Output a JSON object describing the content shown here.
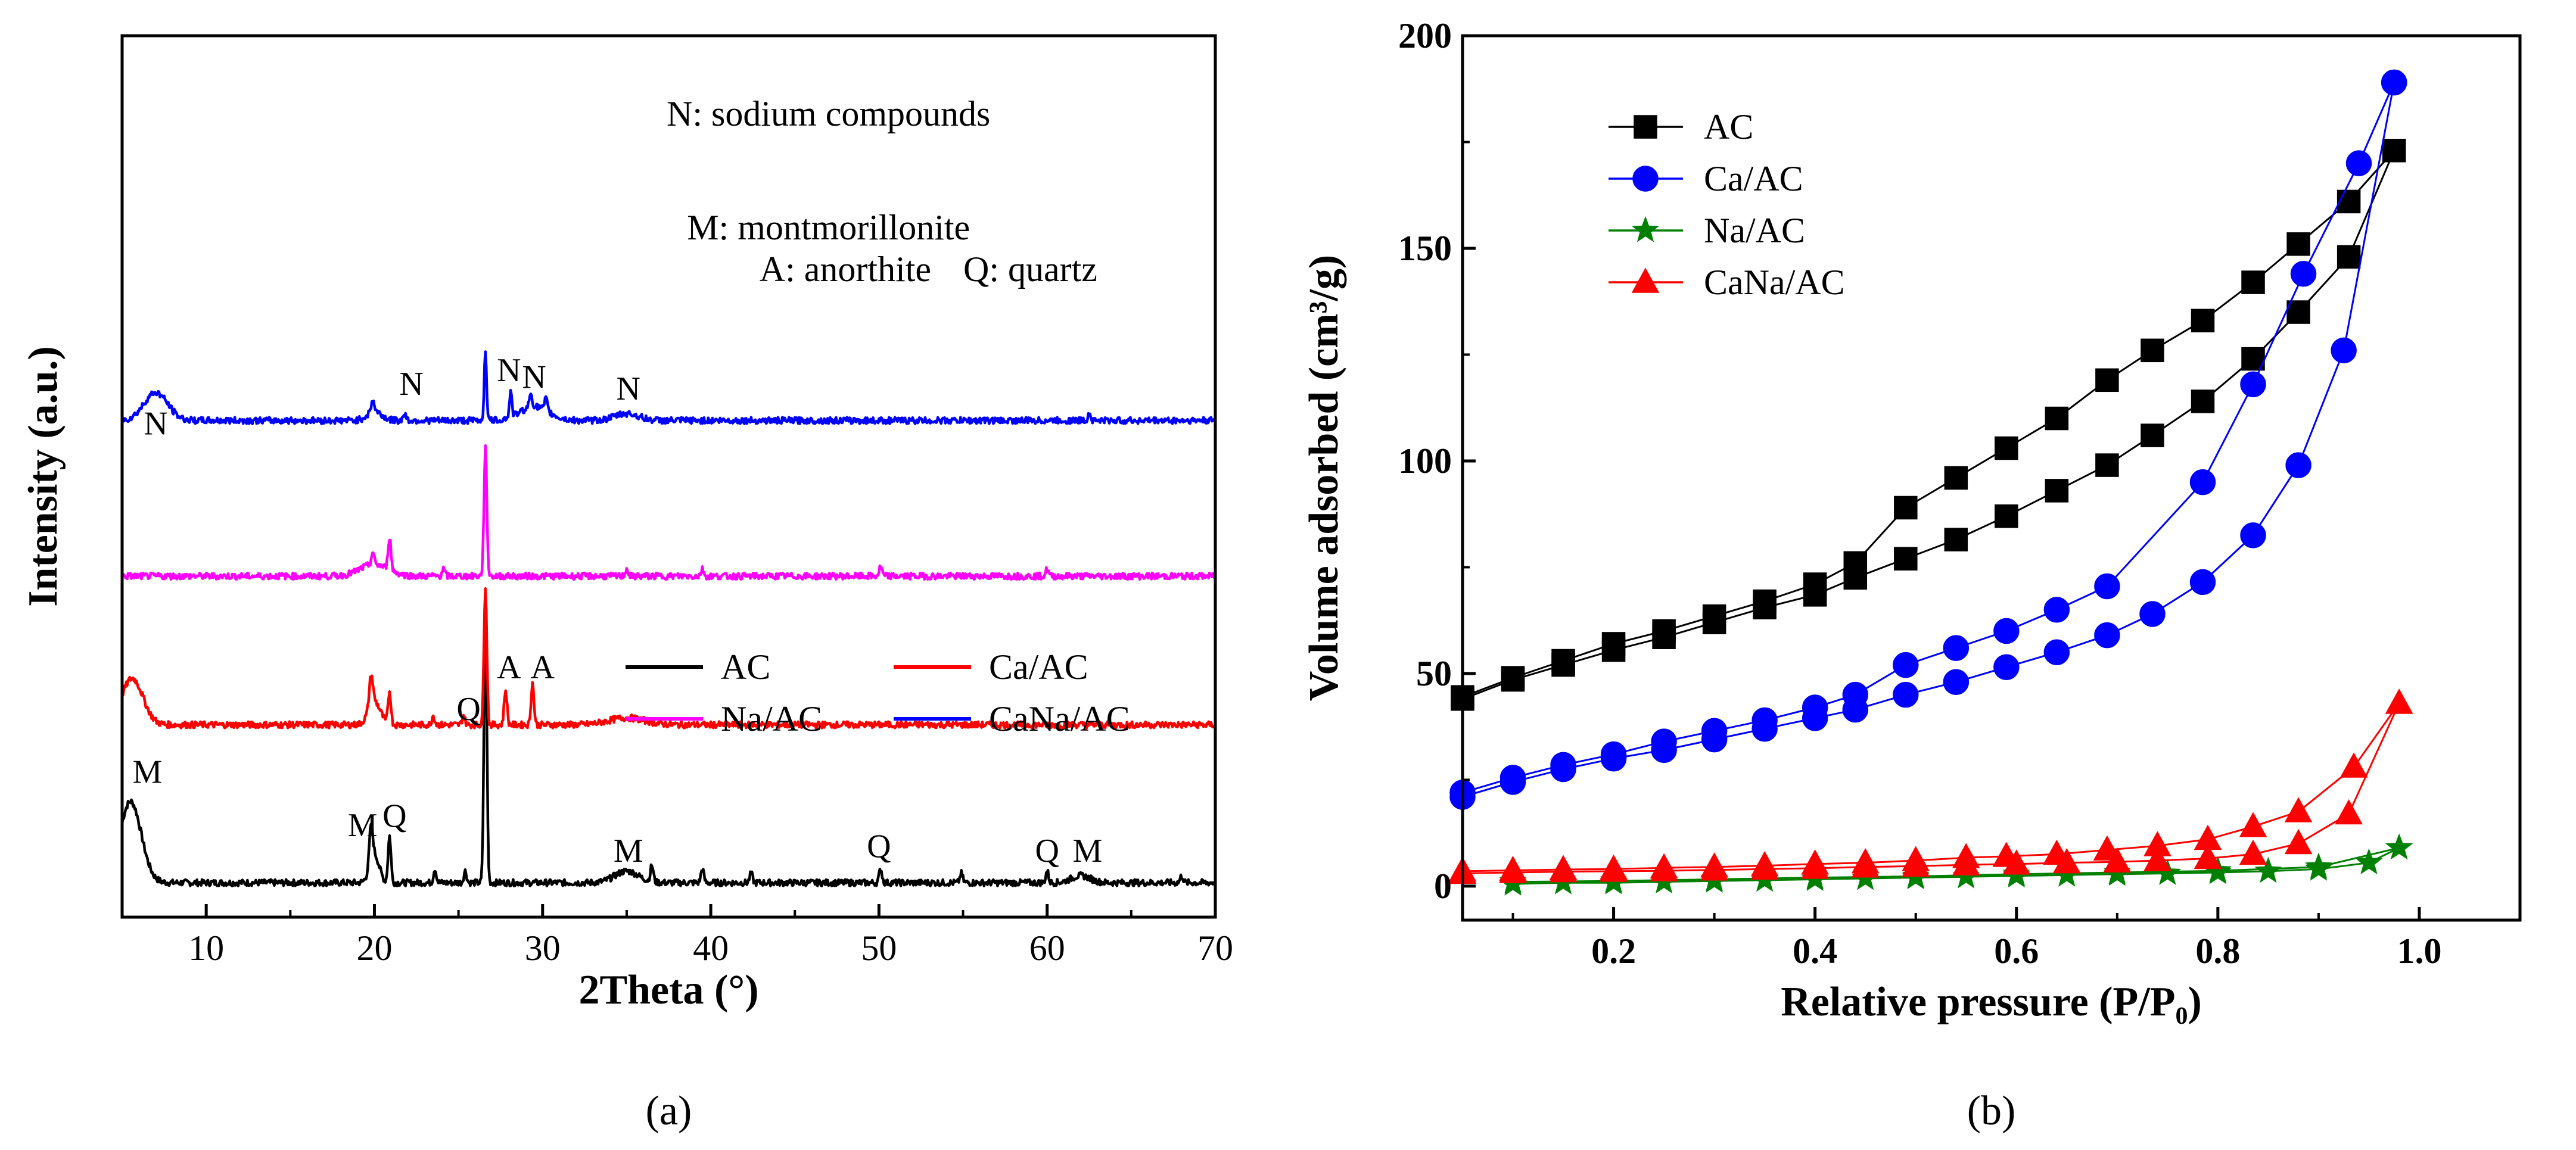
{
  "chart_data": [
    {
      "type": "line",
      "panel_label": "(a)",
      "xlabel": "2Theta (°)",
      "ylabel": "Intensity (a.u.)",
      "xlim": [
        5,
        70
      ],
      "x_ticks": [
        "10",
        "20",
        "30",
        "40",
        "50",
        "60",
        "70"
      ],
      "y_ticks": [],
      "legend": {
        "placement": "inside-lower-right",
        "entries": [
          {
            "label": "AC",
            "color": "#000000"
          },
          {
            "label": "Ca/AC",
            "color": "#ff0000"
          },
          {
            "label": "Na/AC",
            "color": "#ff00ff"
          },
          {
            "label": "CaNa/AC",
            "color": "#0000ff"
          }
        ]
      },
      "annotations_key": [
        {
          "text": "N: sodium compounds",
          "x": 47,
          "stack_y": 3.28
        },
        {
          "text": "M: montmorillonite",
          "x": 47,
          "stack_y": 2.79
        },
        {
          "text": "A: anorthite",
          "x": 48,
          "stack_y": 2.61
        },
        {
          "text": "Q: quartz",
          "x": 59,
          "stack_y": 2.61
        }
      ],
      "series": [
        {
          "name": "AC",
          "color": "#000000",
          "offset": 0,
          "baseline": 0.02,
          "broad": [
            [
              5.5,
              0.35,
              0.9
            ],
            [
              20,
              0.12,
              0.4
            ],
            [
              35,
              0.05,
              1.0
            ],
            [
              62,
              0.03,
              0.8
            ]
          ],
          "peaks": [
            [
              26.6,
              1.18,
              0.12
            ],
            [
              19.8,
              0.16,
              0.14
            ],
            [
              20.9,
              0.2,
              0.12
            ],
            [
              23.6,
              0.06,
              0.12
            ],
            [
              25.4,
              0.05,
              0.12
            ],
            [
              36.5,
              0.07,
              0.12
            ],
            [
              39.5,
              0.06,
              0.12
            ],
            [
              42.4,
              0.04,
              0.12
            ],
            [
              50.1,
              0.06,
              0.12
            ],
            [
              54.9,
              0.04,
              0.12
            ],
            [
              60.0,
              0.05,
              0.12
            ],
            [
              68.0,
              0.03,
              0.12
            ]
          ],
          "labels": [
            {
              "text": "M",
              "x": 6.5,
              "y": 0.45
            },
            {
              "text": "M",
              "x": 19.3,
              "y": 0.22
            },
            {
              "text": "Q",
              "x": 21.2,
              "y": 0.26
            },
            {
              "text": "Q",
              "x": 25.6,
              "y": 0.72
            },
            {
              "text": "M",
              "x": 35.1,
              "y": 0.11
            },
            {
              "text": "Q",
              "x": 50.0,
              "y": 0.13
            },
            {
              "text": "Q",
              "x": 60.0,
              "y": 0.11
            },
            {
              "text": "M",
              "x": 62.4,
              "y": 0.11
            }
          ]
        },
        {
          "name": "Ca/AC",
          "color": "#ff0000",
          "offset": 0.68,
          "baseline": 0.02,
          "broad": [
            [
              5.6,
              0.2,
              0.9
            ],
            [
              20,
              0.1,
              0.5
            ],
            [
              35,
              0.03,
              1.5
            ]
          ],
          "peaks": [
            [
              26.6,
              0.6,
              0.12
            ],
            [
              19.8,
              0.13,
              0.15
            ],
            [
              20.9,
              0.14,
              0.12
            ],
            [
              27.8,
              0.15,
              0.12
            ],
            [
              29.4,
              0.18,
              0.12
            ],
            [
              23.5,
              0.04,
              0.12
            ],
            [
              25.3,
              0.04,
              0.12
            ]
          ],
          "labels": [
            {
              "text": "A",
              "x": 28.0,
              "y": 0.22
            },
            {
              "text": "A",
              "x": 30.0,
              "y": 0.22
            }
          ]
        },
        {
          "name": "Na/AC",
          "color": "#ff00ff",
          "offset": 1.32,
          "baseline": 0.02,
          "broad": [
            [
              20,
              0.05,
              1.2
            ]
          ],
          "peaks": [
            [
              26.6,
              0.55,
              0.12
            ],
            [
              20.9,
              0.14,
              0.12
            ],
            [
              19.9,
              0.05,
              0.12
            ],
            [
              24.1,
              0.03,
              0.12
            ],
            [
              35.0,
              0.03,
              0.12
            ],
            [
              39.5,
              0.03,
              0.12
            ],
            [
              50.1,
              0.04,
              0.12
            ],
            [
              60.0,
              0.03,
              0.12
            ]
          ],
          "labels": []
        },
        {
          "name": "CaNa/AC",
          "color": "#0000ff",
          "offset": 1.99,
          "baseline": 0.02,
          "broad": [
            [
              7.0,
              0.12,
              1.0
            ],
            [
              20,
              0.04,
              0.6
            ],
            [
              29.5,
              0.06,
              1.2
            ],
            [
              35,
              0.03,
              1.0
            ]
          ],
          "peaks": [
            [
              26.6,
              0.3,
              0.1
            ],
            [
              19.9,
              0.05,
              0.12
            ],
            [
              28.1,
              0.11,
              0.1
            ],
            [
              29.3,
              0.06,
              0.12
            ],
            [
              30.2,
              0.05,
              0.12
            ],
            [
              21.8,
              0.03,
              0.12
            ],
            [
              62.5,
              0.03,
              0.12
            ]
          ],
          "labels": [
            {
              "text": "N",
              "x": 7.0,
              "y": -0.04
            },
            {
              "text": "N",
              "x": 22.2,
              "y": 0.13
            },
            {
              "text": "N",
              "x": 28.0,
              "y": 0.19
            },
            {
              "text": "N",
              "x": 29.5,
              "y": 0.16
            },
            {
              "text": "N",
              "x": 35.1,
              "y": 0.11
            }
          ]
        }
      ]
    },
    {
      "type": "line",
      "panel_label": "(b)",
      "xlabel": "Relative pressure (P/P₀)",
      "ylabel": "Volume adsorbed (cm³/g)",
      "xlim": [
        0.05,
        1.1
      ],
      "ylim": [
        -8,
        200
      ],
      "x_ticks": [
        "0.2",
        "0.4",
        "0.6",
        "0.8",
        "1.0"
      ],
      "y_ticks": [
        "0",
        "50",
        "100",
        "150",
        "200"
      ],
      "legend": {
        "placement": "top-left",
        "entries": [
          {
            "label": "AC",
            "color": "#000000",
            "marker": "square"
          },
          {
            "label": "Ca/AC",
            "color": "#0000ff",
            "marker": "circle"
          },
          {
            "label": "Na/AC",
            "color": "#008000",
            "marker": "star"
          },
          {
            "label": "CaNa/AC",
            "color": "#ff0000",
            "marker": "triangle"
          }
        ]
      },
      "series": [
        {
          "name": "AC",
          "color": "#000000",
          "marker": "square",
          "adsorption": [
            [
              0.05,
              44
            ],
            [
              0.1,
              48.5
            ],
            [
              0.15,
              52
            ],
            [
              0.2,
              55.5
            ],
            [
              0.25,
              58.5
            ],
            [
              0.3,
              62
            ],
            [
              0.35,
              65.5
            ],
            [
              0.4,
              68.5
            ],
            [
              0.44,
              72.5
            ],
            [
              0.49,
              77
            ],
            [
              0.54,
              81.5
            ],
            [
              0.59,
              87
            ],
            [
              0.64,
              93
            ],
            [
              0.69,
              99
            ],
            [
              0.735,
              106
            ],
            [
              0.785,
              114
            ],
            [
              0.835,
              124
            ],
            [
              0.88,
              135
            ],
            [
              0.93,
              148
            ],
            [
              0.975,
              173
            ]
          ],
          "desorption": [
            [
              0.975,
              173
            ],
            [
              0.93,
              161
            ],
            [
              0.88,
              151
            ],
            [
              0.835,
              142
            ],
            [
              0.785,
              133
            ],
            [
              0.735,
              126
            ],
            [
              0.69,
              119
            ],
            [
              0.64,
              110
            ],
            [
              0.59,
              103
            ],
            [
              0.54,
              96
            ],
            [
              0.49,
              89
            ],
            [
              0.44,
              76
            ],
            [
              0.4,
              71
            ],
            [
              0.35,
              67
            ],
            [
              0.3,
              63.5
            ],
            [
              0.25,
              60
            ],
            [
              0.2,
              57
            ],
            [
              0.15,
              53
            ],
            [
              0.1,
              49
            ],
            [
              0.05,
              44.5
            ]
          ]
        },
        {
          "name": "Ca/AC",
          "color": "#0000ff",
          "marker": "circle",
          "adsorption": [
            [
              0.05,
              21
            ],
            [
              0.1,
              24.5
            ],
            [
              0.15,
              27.5
            ],
            [
              0.2,
              30
            ],
            [
              0.25,
              32
            ],
            [
              0.3,
              34.5
            ],
            [
              0.35,
              37
            ],
            [
              0.4,
              39.5
            ],
            [
              0.44,
              41.5
            ],
            [
              0.49,
              45
            ],
            [
              0.54,
              48
            ],
            [
              0.59,
              51.5
            ],
            [
              0.64,
              55
            ],
            [
              0.69,
              59
            ],
            [
              0.735,
              64
            ],
            [
              0.785,
              71.5
            ],
            [
              0.835,
              82.5
            ],
            [
              0.88,
              99
            ],
            [
              0.925,
              126
            ],
            [
              0.975,
              189
            ]
          ],
          "desorption": [
            [
              0.975,
              189
            ],
            [
              0.94,
              170
            ],
            [
              0.885,
              144
            ],
            [
              0.835,
              118
            ],
            [
              0.785,
              95
            ],
            [
              0.69,
              70.5
            ],
            [
              0.64,
              65
            ],
            [
              0.59,
              60
            ],
            [
              0.54,
              56
            ],
            [
              0.49,
              52
            ],
            [
              0.44,
              45
            ],
            [
              0.4,
              42
            ],
            [
              0.35,
              39
            ],
            [
              0.3,
              36.5
            ],
            [
              0.25,
              34
            ],
            [
              0.2,
              31
            ],
            [
              0.15,
              28.5
            ],
            [
              0.1,
              25.5
            ],
            [
              0.05,
              22
            ]
          ]
        },
        {
          "name": "Na/AC",
          "color": "#008000",
          "marker": "star",
          "adsorption": [
            [
              0.1,
              0.5
            ],
            [
              0.15,
              0.8
            ],
            [
              0.2,
              0.8
            ],
            [
              0.25,
              1
            ],
            [
              0.3,
              1.2
            ],
            [
              0.35,
              1.4
            ],
            [
              0.4,
              1.6
            ],
            [
              0.45,
              1.8
            ],
            [
              0.5,
              2
            ],
            [
              0.55,
              2.2
            ],
            [
              0.6,
              2.4
            ],
            [
              0.65,
              2.6
            ],
            [
              0.7,
              2.8
            ],
            [
              0.75,
              3
            ],
            [
              0.8,
              3.2
            ],
            [
              0.85,
              3.5
            ],
            [
              0.9,
              4
            ],
            [
              0.95,
              5.5
            ],
            [
              0.98,
              9
            ]
          ],
          "desorption": [
            [
              0.98,
              9
            ],
            [
              0.9,
              4.5
            ],
            [
              0.8,
              3.6
            ],
            [
              0.7,
              3.2
            ],
            [
              0.6,
              2.8
            ],
            [
              0.5,
              2.3
            ],
            [
              0.4,
              2
            ],
            [
              0.3,
              1.6
            ],
            [
              0.2,
              1.2
            ],
            [
              0.1,
              1
            ]
          ]
        },
        {
          "name": "CaNa/AC",
          "color": "#ff0000",
          "marker": "triangle",
          "adsorption": [
            [
              0.05,
              3
            ],
            [
              0.1,
              3.2
            ],
            [
              0.15,
              3.4
            ],
            [
              0.2,
              3.5
            ],
            [
              0.25,
              3.6
            ],
            [
              0.3,
              3.8
            ],
            [
              0.35,
              4
            ],
            [
              0.4,
              4.2
            ],
            [
              0.45,
              4.5
            ],
            [
              0.5,
              4.7
            ],
            [
              0.55,
              5
            ],
            [
              0.6,
              5.2
            ],
            [
              0.65,
              5.5
            ],
            [
              0.7,
              5.7
            ],
            [
              0.74,
              6
            ],
            [
              0.79,
              6.5
            ],
            [
              0.835,
              7.5
            ],
            [
              0.88,
              10
            ],
            [
              0.93,
              17
            ],
            [
              0.98,
              43
            ]
          ],
          "desorption": [
            [
              0.98,
              43
            ],
            [
              0.935,
              28
            ],
            [
              0.88,
              17.5
            ],
            [
              0.835,
              14
            ],
            [
              0.79,
              11
            ],
            [
              0.74,
              9.5
            ],
            [
              0.69,
              8.5
            ],
            [
              0.64,
              7.5
            ],
            [
              0.59,
              7
            ],
            [
              0.55,
              6.7
            ],
            [
              0.5,
              6
            ],
            [
              0.45,
              5.5
            ],
            [
              0.4,
              5.2
            ],
            [
              0.35,
              4.8
            ],
            [
              0.3,
              4.5
            ],
            [
              0.25,
              4.3
            ],
            [
              0.2,
              4
            ],
            [
              0.15,
              3.9
            ],
            [
              0.1,
              3.7
            ],
            [
              0.05,
              3.5
            ]
          ]
        }
      ]
    }
  ]
}
